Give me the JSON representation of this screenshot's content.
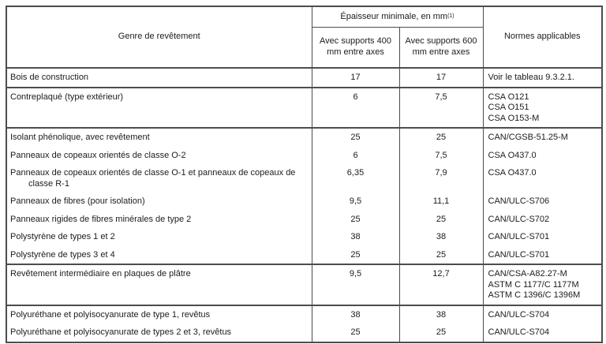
{
  "table": {
    "header": {
      "col_genre": "Genre de revêtement",
      "epaisseur_title": "Épaisseur minimale, en mm",
      "epaisseur_note": "(1)",
      "col_400": "Avec supports 400 mm entre axes",
      "col_600": "Avec supports 600 mm entre axes",
      "col_normes": "Normes applicables"
    },
    "rows": [
      {
        "genre": "Bois de construction",
        "ep400": "17",
        "ep600": "17",
        "normes": "Voir le tableau 9.3.2.1.",
        "group_start": true
      },
      {
        "genre": "Contreplaqué (type extérieur)",
        "ep400": "6",
        "ep600": "7,5",
        "normes": "CSA O121\nCSA O151\nCSA O153-M",
        "group_start": true
      },
      {
        "genre": "Isolant phénolique, avec revêtement",
        "ep400": "25",
        "ep600": "25",
        "normes": "CAN/CGSB-51.25-M",
        "group_start": true
      },
      {
        "genre": "Panneaux de copeaux orientés de classe O-2",
        "ep400": "6",
        "ep600": "7,5",
        "normes": "CSA O437.0",
        "group_start": false
      },
      {
        "genre": "Panneaux de copeaux orientés de classe O-1 et panneaux de copeaux de classe R-1",
        "ep400": "6,35",
        "ep600": "7,9",
        "normes": "CSA O437.0",
        "group_start": false
      },
      {
        "genre": "Panneaux de fibres (pour isolation)",
        "ep400": "9,5",
        "ep600": "11,1",
        "normes": "CAN/ULC-S706",
        "group_start": false
      },
      {
        "genre": "Panneaux rigides de fibres minérales de type 2",
        "ep400": "25",
        "ep600": "25",
        "normes": "CAN/ULC-S702",
        "group_start": false
      },
      {
        "genre": "Polystyrène de types 1 et 2",
        "ep400": "38",
        "ep600": "38",
        "normes": "CAN/ULC-S701",
        "group_start": false
      },
      {
        "genre": "Polystyrène de types 3 et 4",
        "ep400": "25",
        "ep600": "25",
        "normes": "CAN/ULC-S701",
        "group_start": false
      },
      {
        "genre": "Revêtement intermédiaire en plaques de plâtre",
        "ep400": "9,5",
        "ep600": "12,7",
        "normes": "CAN/CSA-A82.27-M\nASTM C 1177/C 1177M\nASTM C 1396/C 1396M",
        "group_start": true
      },
      {
        "genre": "Polyuréthane et polyisocyanurate de type 1, revêtus",
        "ep400": "38",
        "ep600": "38",
        "normes": "CAN/ULC-S704",
        "group_start": true
      },
      {
        "genre": "Polyuréthane et polyisocyanurate de types 2 et 3, revêtus",
        "ep400": "25",
        "ep600": "25",
        "normes": "CAN/ULC-S704",
        "group_start": false
      }
    ]
  },
  "colors": {
    "border": "#4d4d4d",
    "text": "#1c1c1c",
    "background": "#ffffff"
  }
}
